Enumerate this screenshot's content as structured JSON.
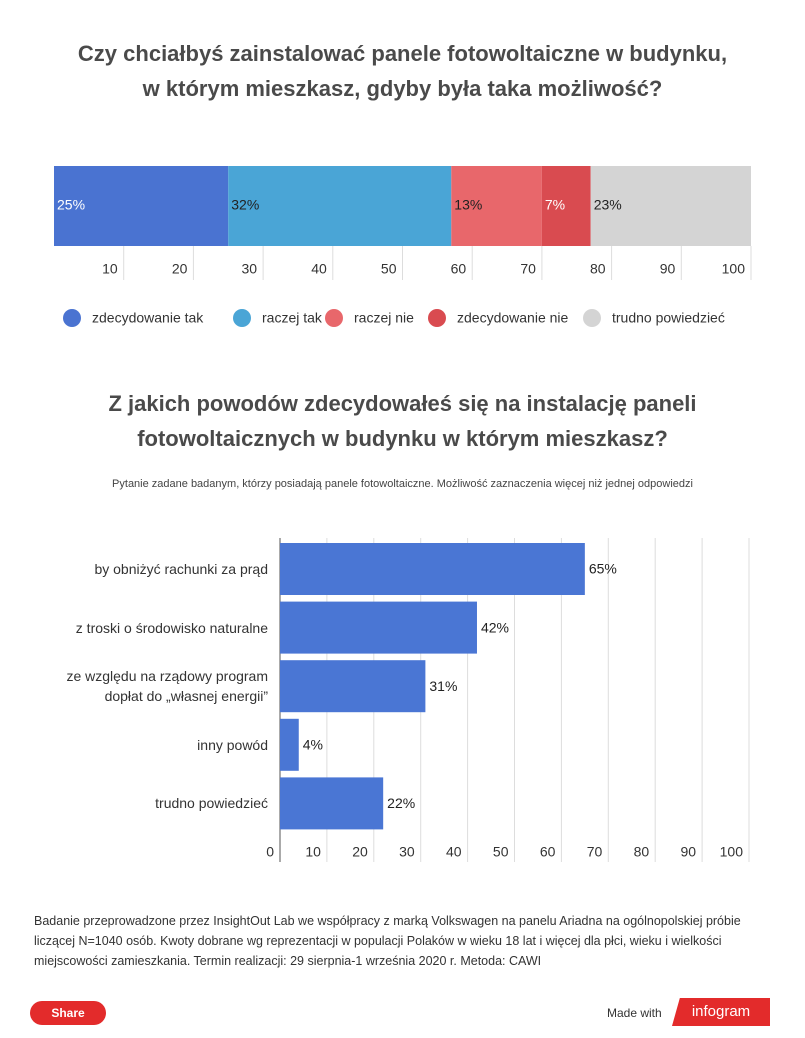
{
  "chart_data": [
    {
      "type": "stacked_bar",
      "title": "Czy chciałbyś zainstalować panele fotowoltaiczne w budynku,\nw którym mieszkasz, gdyby była taka możliwość?",
      "series": [
        {
          "name": "zdecydowanie tak",
          "color": "#4a73d1",
          "values": [
            25
          ],
          "value_labels": [
            "25%"
          ]
        },
        {
          "name": "raczej tak",
          "color": "#4aa5d6",
          "values": [
            32
          ],
          "value_labels": [
            "32%"
          ]
        },
        {
          "name": "raczej nie",
          "color": "#e8676b",
          "values": [
            13
          ],
          "value_labels": [
            "13%"
          ]
        },
        {
          "name": "zdecydowanie nie",
          "color": "#d94b50",
          "values": [
            7
          ],
          "value_labels": [
            "7%"
          ]
        },
        {
          "name": "trudno powiedzieć",
          "color": "#d4d4d4",
          "values": [
            23
          ],
          "value_labels": [
            "23%"
          ]
        }
      ],
      "xlim": [
        0,
        100
      ],
      "xticks": [
        10,
        20,
        30,
        40,
        50,
        60,
        70,
        80,
        90,
        100
      ],
      "legend": "bottom"
    },
    {
      "type": "bar",
      "title": "Z jakich powodów zdecydowałeś się na instalację paneli\nfotowoltaicznych w budynku w którym mieszkasz?",
      "subtitle": "Pytanie zadane badanym, którzy posiadają panele fotowoltaiczne. Możliwość zaznaczenia więcej niż jednej odpowiedzi",
      "categories": [
        "by obniżyć rachunki za prąd",
        "z troski o środowisko naturalne",
        "ze względu na rządowy program\ndopłat do „własnej energii”",
        "inny powód",
        "trudno powiedzieć"
      ],
      "values": [
        65,
        42,
        31,
        4,
        22
      ],
      "value_labels": [
        "65%",
        "42%",
        "31%",
        "4%",
        "22%"
      ],
      "color": "#4a76d4",
      "xlim": [
        0,
        100
      ],
      "xticks": [
        0,
        10,
        20,
        30,
        40,
        50,
        60,
        70,
        80,
        90,
        100
      ],
      "grid": true
    }
  ],
  "note": "Badanie przeprowadzone przez InsightOut Lab we współpracy z marką Volkswagen na panelu Ariadna na ogólnopolskiej próbie liczącej N=1040 osób. Kwoty dobrane wg reprezentacji w populacji Polaków w wieku 18 lat i więcej dla płci, wieku i wielkości miejscowości zamieszkania. Termin realizacji: 29 sierpnia-1 września 2020 r. Metoda: CAWI",
  "share": "Share",
  "made_with": "Made with",
  "brand": "infogram"
}
